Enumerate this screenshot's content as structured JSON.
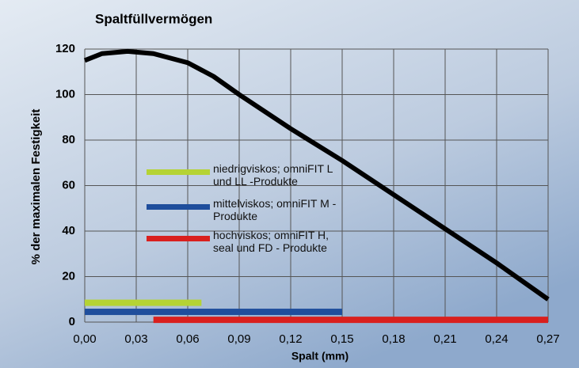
{
  "chart_data": {
    "type": "line",
    "title": "Spaltfüllvermögen",
    "xlabel": "Spalt (mm)",
    "ylabel": "% der maximalen Festigkeit",
    "xlim": [
      0,
      0.27
    ],
    "ylim": [
      0,
      120
    ],
    "xticks": [
      {
        "value": 0,
        "label": "0,00"
      },
      {
        "value": 0.03,
        "label": "0,03"
      },
      {
        "value": 0.06,
        "label": "0,06"
      },
      {
        "value": 0.09,
        "label": "0,09"
      },
      {
        "value": 0.12,
        "label": "0,12"
      },
      {
        "value": 0.15,
        "label": "0,15"
      },
      {
        "value": 0.18,
        "label": "0,18"
      },
      {
        "value": 0.21,
        "label": "0,21"
      },
      {
        "value": 0.24,
        "label": "0,24"
      },
      {
        "value": 0.27,
        "label": "0,27"
      }
    ],
    "yticks": [
      0,
      20,
      40,
      60,
      80,
      100,
      120
    ],
    "grid": true,
    "curve": {
      "color": "#000000",
      "x": [
        0,
        0.01,
        0.025,
        0.04,
        0.06,
        0.075,
        0.09,
        0.12,
        0.15,
        0.18,
        0.21,
        0.24,
        0.27
      ],
      "y": [
        115,
        118,
        119,
        118,
        114,
        108,
        100,
        85,
        71,
        56,
        41,
        26,
        10
      ]
    },
    "series": [
      {
        "name": "niedrigviskos; omniFIT L und LL -Produkte",
        "color": "#b5d334",
        "x": [
          0,
          0.068
        ],
        "y": 8.5
      },
      {
        "name": "mittelviskos; omniFIT M - Produkte",
        "color": "#1f4e9c",
        "x": [
          0,
          0.15
        ],
        "y": 4.5
      },
      {
        "name": "hochviskos; omniFIT H, seal und FD - Produkte",
        "color": "#d9201e",
        "x": [
          0.04,
          0.27
        ],
        "y": 1
      }
    ]
  }
}
